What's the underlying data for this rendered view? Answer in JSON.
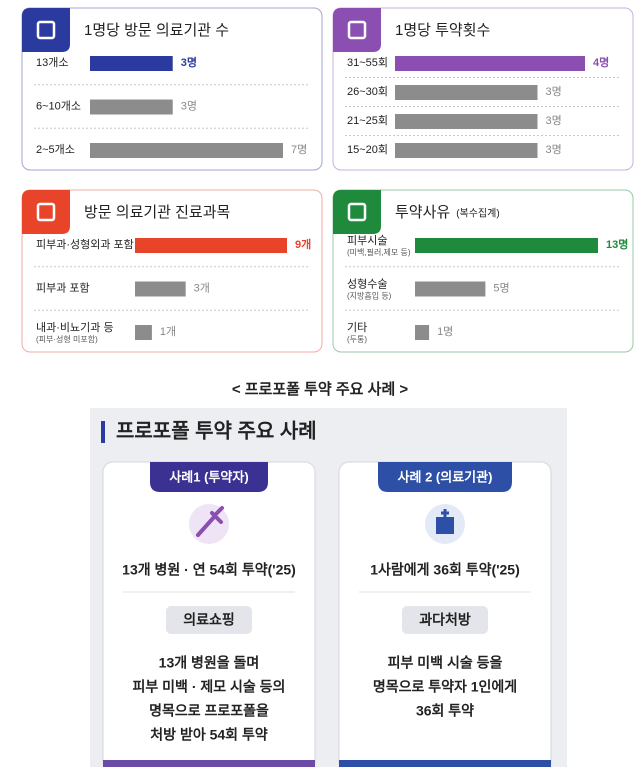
{
  "chart_data": [
    {
      "type": "hbar",
      "title": "1명당 방문 의료기관 수",
      "categories": [
        "13개소",
        "6~10개소",
        "2~5개소"
      ],
      "values": [
        3,
        3,
        7
      ],
      "value_labels": [
        "3명",
        "3명",
        "7명"
      ],
      "colors": [
        "#2b3a9e",
        "#8c8c8c",
        "#8c8c8c"
      ]
    },
    {
      "type": "hbar",
      "title": "1명당 투약횟수",
      "categories": [
        "31~55회",
        "26~30회",
        "21~25회",
        "15~20회"
      ],
      "values": [
        4,
        3,
        3,
        3
      ],
      "value_labels": [
        "4명",
        "3명",
        "3명",
        "3명"
      ],
      "colors": [
        "#8a4fb0",
        "#8c8c8c",
        "#8c8c8c",
        "#8c8c8c"
      ]
    },
    {
      "type": "hbar",
      "title": "방문 의료기관 진료과목",
      "categories": [
        "피부과·성형외과 포함",
        "피부과 포함",
        "내과·비뇨기과 등"
      ],
      "category_notes": [
        null,
        null,
        "(피부·성형 미포함)"
      ],
      "values": [
        9,
        3,
        1
      ],
      "value_labels": [
        "9개",
        "3개",
        "1개"
      ],
      "colors": [
        "#e8442a",
        "#8c8c8c",
        "#8c8c8c"
      ]
    },
    {
      "type": "hbar",
      "title": "투약사유",
      "subtitle": "(복수집계)",
      "categories": [
        "피부시술",
        "성형수술",
        "기타"
      ],
      "category_notes": [
        "(미백,필러,제모 등)",
        "(지방흡입 등)",
        "(두통)"
      ],
      "values": [
        13,
        5,
        1
      ],
      "value_labels": [
        "13명",
        "5명",
        "1명"
      ],
      "colors": [
        "#1f8a3c",
        "#8c8c8c",
        "#8c8c8c"
      ]
    }
  ],
  "caption": "< 프로포폴 투약 주요 사례 >",
  "panel": {
    "title": "프로포폴 투약 주요 사례",
    "cases": [
      {
        "badge": "사례1 (투약자)",
        "headline": "13개 병원 · 연 54회 투약('25)",
        "tag": "의료쇼핑",
        "lines": [
          "13개 병원을 돌며",
          "피부 미백 · 제모 시술 등의",
          "명목으로 프로포폴을",
          "처방 받아 54회 투약"
        ]
      },
      {
        "badge": "사례 2 (의료기관)",
        "headline": "1사람에게 36회 투약('25)",
        "tag": "과다처방",
        "lines": [
          "피부 미백 시술 등을",
          "명목으로 투약자 1인에게",
          "36회 투약"
        ]
      }
    ]
  }
}
